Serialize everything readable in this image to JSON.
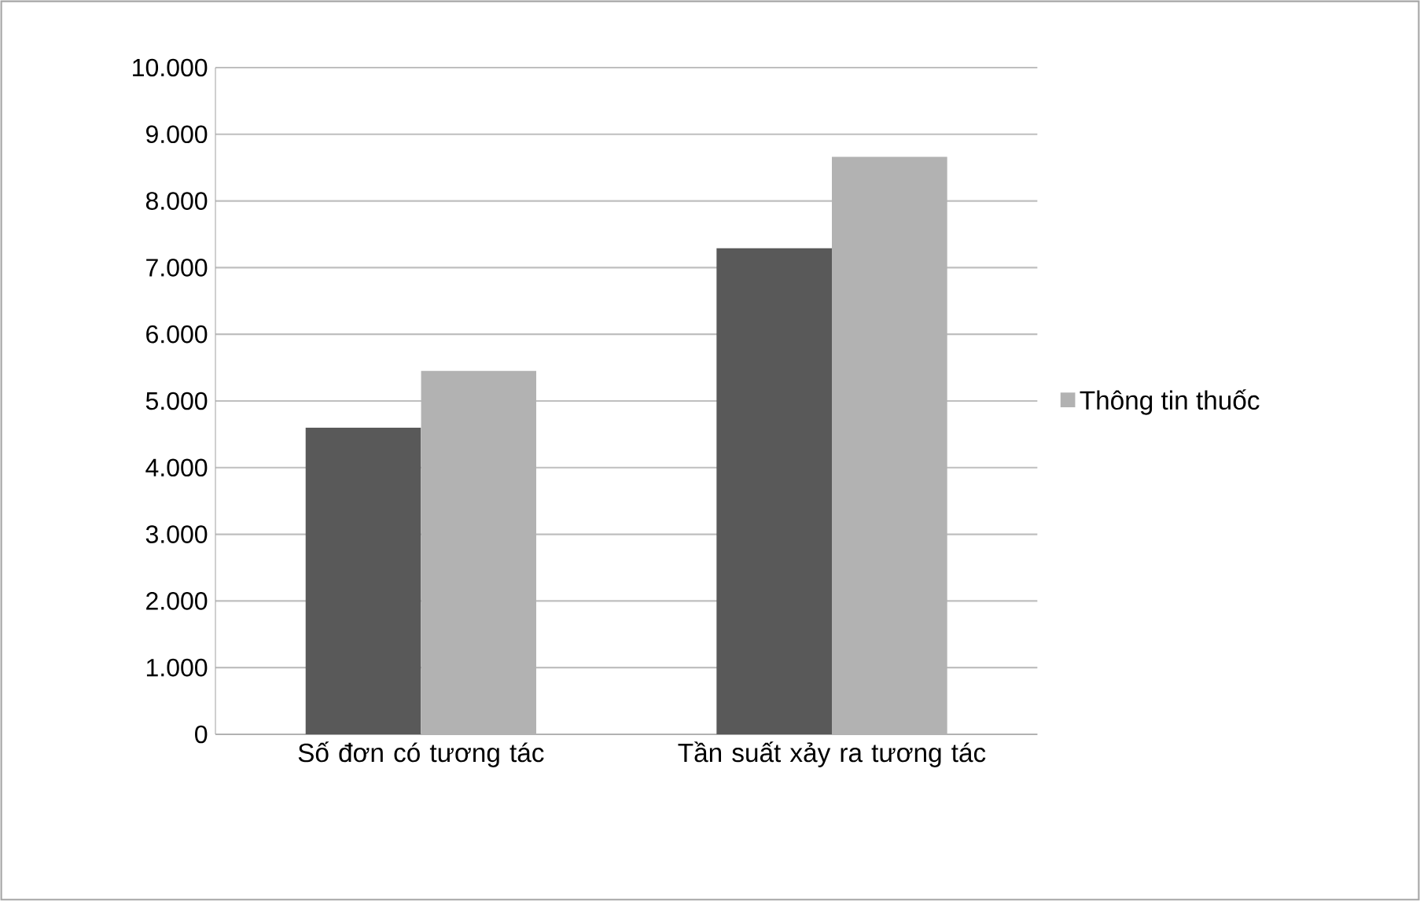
{
  "chart_data": {
    "type": "bar",
    "categories": [
      "Số đơn có tương tác",
      "Tần suất xảy ra tương tác"
    ],
    "series": [
      {
        "color": "#595959",
        "values": [
          4600,
          7290
        ]
      },
      {
        "name": "Thông tin thuốc",
        "color": "#b2b2b2",
        "values": [
          5450,
          8660
        ]
      }
    ],
    "ylim": [
      0,
      10000
    ],
    "yticks": [
      0,
      {
        "value": 1000,
        "label": "1.000"
      },
      {
        "value": 2000,
        "label": "2.000"
      },
      {
        "value": 3000,
        "label": "3.000"
      },
      {
        "value": 4000,
        "label": "4.000"
      },
      {
        "value": 5000,
        "label": "5.000"
      },
      {
        "value": 6000,
        "label": "6.000"
      },
      {
        "value": 7000,
        "label": "7.000"
      },
      {
        "value": 8000,
        "label": "8.000"
      },
      {
        "value": 9000,
        "label": "9.000"
      },
      {
        "value": 10000,
        "label": "10.000"
      }
    ],
    "grid": "y",
    "legend": "right"
  }
}
